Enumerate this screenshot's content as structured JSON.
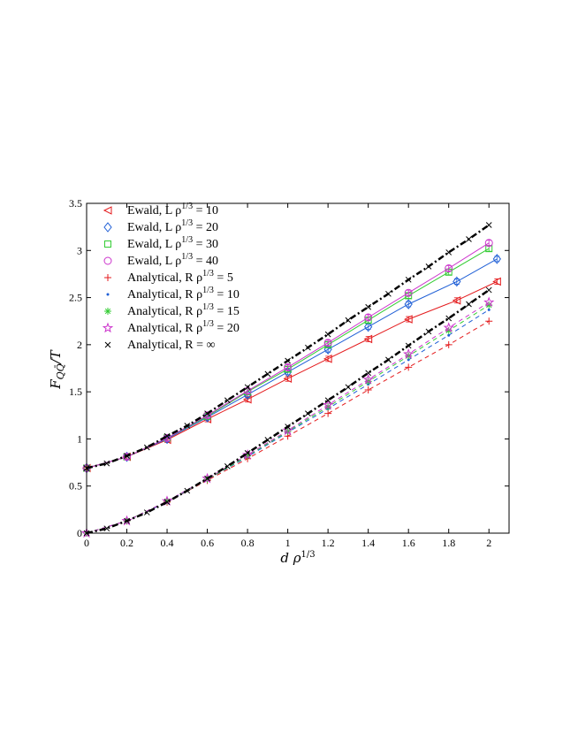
{
  "chart_data": {
    "type": "line",
    "xlabel": "d ρ^{1/3}",
    "ylabel": "F_{QQ̄}/T",
    "xlim": [
      0,
      2.1
    ],
    "ylim": [
      0,
      3.5
    ],
    "xticks": [
      0,
      0.2,
      0.4,
      0.6,
      0.8,
      1,
      1.2,
      1.4,
      1.6,
      1.8,
      2
    ],
    "yticks": [
      0,
      0.5,
      1,
      1.5,
      2,
      2.5,
      3,
      3.5
    ],
    "xtick_labels": [
      "0",
      "0.2",
      "0.4",
      "0.6",
      "0.8",
      "1",
      "1.2",
      "1.4",
      "1.6",
      "1.8",
      "2"
    ],
    "ytick_labels": [
      "0",
      "0.5",
      "1",
      "1.5",
      "2",
      "2.5",
      "3",
      "3.5"
    ],
    "legend_position": "top-left",
    "grid": false,
    "series": [
      {
        "name": "Ewald, L ρ^{1/3} = 10",
        "color": "#e41a1c",
        "marker": "triangle-left",
        "line": "solid",
        "x": [
          0,
          0.2,
          0.4,
          0.6,
          0.8,
          1.0,
          1.2,
          1.4,
          1.6,
          1.84,
          2.04
        ],
        "y": [
          0.69,
          0.81,
          0.99,
          1.21,
          1.42,
          1.64,
          1.85,
          2.06,
          2.27,
          2.47,
          2.67
        ]
      },
      {
        "name": "Ewald, L ρ^{1/3} = 20",
        "color": "#1f5fd6",
        "marker": "diamond",
        "line": "solid",
        "x": [
          0,
          0.2,
          0.4,
          0.6,
          0.8,
          1.0,
          1.2,
          1.4,
          1.6,
          1.84,
          2.04
        ],
        "y": [
          0.69,
          0.81,
          1.0,
          1.23,
          1.47,
          1.71,
          1.95,
          2.19,
          2.43,
          2.67,
          2.91
        ]
      },
      {
        "name": "Ewald, L ρ^{1/3} = 30",
        "color": "#33cc33",
        "marker": "square",
        "line": "solid",
        "x": [
          0,
          0.2,
          0.4,
          0.6,
          0.8,
          1.0,
          1.2,
          1.4,
          1.6,
          1.8,
          2.0
        ],
        "y": [
          0.69,
          0.81,
          1.01,
          1.24,
          1.5,
          1.74,
          2.0,
          2.26,
          2.52,
          2.77,
          3.02
        ]
      },
      {
        "name": "Ewald, L ρ^{1/3} = 40",
        "color": "#cc33cc",
        "marker": "circle",
        "line": "solid",
        "x": [
          0,
          0.2,
          0.4,
          0.6,
          0.8,
          1.0,
          1.2,
          1.4,
          1.6,
          1.8,
          2.0
        ],
        "y": [
          0.69,
          0.81,
          1.01,
          1.25,
          1.51,
          1.76,
          2.02,
          2.29,
          2.55,
          2.81,
          3.08
        ]
      },
      {
        "name": "Analytical, R ρ^{1/3} = 5",
        "color": "#e41a1c",
        "marker": "plus",
        "line": "dashed",
        "x": [
          0,
          0.2,
          0.4,
          0.6,
          0.8,
          1.0,
          1.2,
          1.4,
          1.6,
          1.8,
          2.0
        ],
        "y": [
          0.0,
          0.13,
          0.33,
          0.56,
          0.79,
          1.03,
          1.27,
          1.52,
          1.76,
          2.0,
          2.25
        ]
      },
      {
        "name": "Analytical, R ρ^{1/3} = 10",
        "color": "#1f5fd6",
        "marker": "dot",
        "line": "dashed",
        "x": [
          0,
          0.2,
          0.4,
          0.6,
          0.8,
          1.0,
          1.2,
          1.4,
          1.6,
          1.8,
          2.0
        ],
        "y": [
          0.0,
          0.13,
          0.33,
          0.57,
          0.81,
          1.07,
          1.32,
          1.58,
          1.84,
          2.1,
          2.37
        ]
      },
      {
        "name": "Analytical, R ρ^{1/3} = 15",
        "color": "#33cc33",
        "marker": "asterisk",
        "line": "dashed",
        "x": [
          0,
          0.2,
          0.4,
          0.6,
          0.8,
          1.0,
          1.2,
          1.4,
          1.6,
          1.8,
          2.0
        ],
        "y": [
          0.0,
          0.13,
          0.34,
          0.57,
          0.82,
          1.08,
          1.34,
          1.61,
          1.88,
          2.15,
          2.42
        ]
      },
      {
        "name": "Analytical, R ρ^{1/3} = 20",
        "color": "#cc33cc",
        "marker": "star",
        "line": "dashed",
        "x": [
          0,
          0.2,
          0.4,
          0.6,
          0.8,
          1.0,
          1.2,
          1.4,
          1.6,
          1.8,
          2.0
        ],
        "y": [
          0.0,
          0.13,
          0.34,
          0.58,
          0.83,
          1.09,
          1.36,
          1.63,
          1.9,
          2.18,
          2.45
        ]
      },
      {
        "name": "Analytical, R = ∞",
        "color": "#000000",
        "marker": "cross",
        "line": "dashdot",
        "x": [
          0,
          0.1,
          0.2,
          0.3,
          0.4,
          0.5,
          0.6,
          0.7,
          0.8,
          0.9,
          1.0,
          1.1,
          1.2,
          1.3,
          1.4,
          1.5,
          1.6,
          1.7,
          1.8,
          1.9,
          2.0
        ],
        "y": [
          0.0,
          0.05,
          0.13,
          0.22,
          0.33,
          0.45,
          0.58,
          0.71,
          0.85,
          0.99,
          1.13,
          1.27,
          1.41,
          1.55,
          1.7,
          1.84,
          1.99,
          2.14,
          2.28,
          2.43,
          2.58
        ]
      },
      {
        "name": "",
        "color": "#000000",
        "marker": "cross",
        "line": "dashdot",
        "x": [
          0,
          0.1,
          0.2,
          0.3,
          0.4,
          0.5,
          0.6,
          0.7,
          0.8,
          0.9,
          1.0,
          1.1,
          1.2,
          1.3,
          1.4,
          1.5,
          1.6,
          1.7,
          1.8,
          1.9,
          2.0
        ],
        "y": [
          0.69,
          0.74,
          0.82,
          0.91,
          1.03,
          1.14,
          1.27,
          1.41,
          1.55,
          1.69,
          1.83,
          1.97,
          2.11,
          2.26,
          2.4,
          2.54,
          2.69,
          2.83,
          2.98,
          3.12,
          3.27
        ]
      }
    ]
  }
}
